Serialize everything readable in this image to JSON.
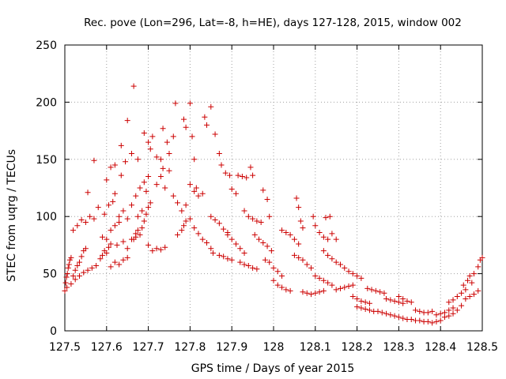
{
  "chart_data": {
    "type": "scatter",
    "title": "Rec. pove (Lon=296, Lat=-8, h=HE), days 127-128, 2015, window 002",
    "xlabel": "GPS time / Days of year 2015",
    "ylabel": "STEC from uqrg / TECUs",
    "xlim": [
      127.5,
      128.5
    ],
    "ylim": [
      0,
      250
    ],
    "xticks": [
      "127.5",
      "127.6",
      "127.7",
      "127.8",
      "127.9",
      "128",
      "128.1",
      "128.2",
      "128.3",
      "128.4",
      "128.5"
    ],
    "yticks": [
      "0",
      "50",
      "100",
      "150",
      "200",
      "250"
    ],
    "grid": true,
    "marker": "+",
    "marker_color": "#cc0000",
    "points": [
      [
        127.5,
        35
      ],
      [
        127.502,
        42
      ],
      [
        127.504,
        47
      ],
      [
        127.506,
        50
      ],
      [
        127.508,
        55
      ],
      [
        127.51,
        58
      ],
      [
        127.512,
        62
      ],
      [
        127.515,
        64
      ],
      [
        127.52,
        48
      ],
      [
        127.525,
        53
      ],
      [
        127.53,
        57
      ],
      [
        127.535,
        60
      ],
      [
        127.54,
        65
      ],
      [
        127.545,
        70
      ],
      [
        127.55,
        72
      ],
      [
        127.505,
        38
      ],
      [
        127.515,
        41
      ],
      [
        127.525,
        45
      ],
      [
        127.535,
        48
      ],
      [
        127.545,
        51
      ],
      [
        127.555,
        53
      ],
      [
        127.565,
        55
      ],
      [
        127.575,
        57
      ],
      [
        127.52,
        88
      ],
      [
        127.53,
        92
      ],
      [
        127.54,
        97
      ],
      [
        127.55,
        95
      ],
      [
        127.56,
        100
      ],
      [
        127.57,
        98
      ],
      [
        127.555,
        121
      ],
      [
        127.57,
        149
      ],
      [
        127.58,
        108
      ],
      [
        127.585,
        63
      ],
      [
        127.59,
        66
      ],
      [
        127.595,
        70
      ],
      [
        127.6,
        68
      ],
      [
        127.605,
        73
      ],
      [
        127.61,
        76
      ],
      [
        127.59,
        82
      ],
      [
        127.6,
        80
      ],
      [
        127.61,
        88
      ],
      [
        127.62,
        92
      ],
      [
        127.63,
        95
      ],
      [
        127.595,
        102
      ],
      [
        127.605,
        110
      ],
      [
        127.615,
        113
      ],
      [
        127.62,
        120
      ],
      [
        127.6,
        132
      ],
      [
        127.61,
        143
      ],
      [
        127.62,
        145
      ],
      [
        127.635,
        136
      ],
      [
        127.61,
        56
      ],
      [
        127.62,
        60
      ],
      [
        127.63,
        58
      ],
      [
        127.64,
        62
      ],
      [
        127.65,
        64
      ],
      [
        127.625,
        75
      ],
      [
        127.64,
        78
      ],
      [
        127.65,
        72
      ],
      [
        127.66,
        80
      ],
      [
        127.67,
        82
      ],
      [
        127.63,
        100
      ],
      [
        127.64,
        105
      ],
      [
        127.65,
        98
      ],
      [
        127.66,
        110
      ],
      [
        127.635,
        162
      ],
      [
        127.645,
        148
      ],
      [
        127.65,
        184
      ],
      [
        127.66,
        155
      ],
      [
        127.665,
        214
      ],
      [
        127.675,
        150
      ],
      [
        127.665,
        80
      ],
      [
        127.67,
        85
      ],
      [
        127.675,
        88
      ],
      [
        127.68,
        84
      ],
      [
        127.685,
        90
      ],
      [
        127.69,
        96
      ],
      [
        127.67,
        118
      ],
      [
        127.68,
        125
      ],
      [
        127.69,
        130
      ],
      [
        127.695,
        122
      ],
      [
        127.7,
        135
      ],
      [
        127.675,
        100
      ],
      [
        127.685,
        105
      ],
      [
        127.695,
        102
      ],
      [
        127.7,
        108
      ],
      [
        127.705,
        112
      ],
      [
        127.69,
        173
      ],
      [
        127.7,
        165
      ],
      [
        127.705,
        159
      ],
      [
        127.71,
        170
      ],
      [
        127.72,
        152
      ],
      [
        127.73,
        150
      ],
      [
        127.7,
        75
      ],
      [
        127.71,
        70
      ],
      [
        127.72,
        72
      ],
      [
        127.73,
        71
      ],
      [
        127.74,
        73
      ],
      [
        127.72,
        128
      ],
      [
        127.73,
        135
      ],
      [
        127.735,
        142
      ],
      [
        127.74,
        125
      ],
      [
        127.75,
        140
      ],
      [
        127.735,
        177
      ],
      [
        127.745,
        165
      ],
      [
        127.75,
        155
      ],
      [
        127.76,
        170
      ],
      [
        127.765,
        199
      ],
      [
        127.76,
        118
      ],
      [
        127.77,
        112
      ],
      [
        127.78,
        105
      ],
      [
        127.79,
        110
      ],
      [
        127.77,
        84
      ],
      [
        127.78,
        88
      ],
      [
        127.785,
        92
      ],
      [
        127.79,
        96
      ],
      [
        127.8,
        98
      ],
      [
        127.785,
        185
      ],
      [
        127.79,
        178
      ],
      [
        127.8,
        199
      ],
      [
        127.805,
        170
      ],
      [
        127.81,
        150
      ],
      [
        127.8,
        128
      ],
      [
        127.81,
        122
      ],
      [
        127.815,
        125
      ],
      [
        127.82,
        118
      ],
      [
        127.83,
        120
      ],
      [
        127.81,
        90
      ],
      [
        127.82,
        85
      ],
      [
        127.83,
        80
      ],
      [
        127.84,
        77
      ],
      [
        127.85,
        72
      ],
      [
        127.835,
        187
      ],
      [
        127.84,
        180
      ],
      [
        127.85,
        196
      ],
      [
        127.86,
        172
      ],
      [
        127.87,
        155
      ],
      [
        127.85,
        100
      ],
      [
        127.86,
        97
      ],
      [
        127.87,
        94
      ],
      [
        127.88,
        89
      ],
      [
        127.89,
        86
      ],
      [
        127.855,
        68
      ],
      [
        127.87,
        66
      ],
      [
        127.88,
        65
      ],
      [
        127.89,
        63
      ],
      [
        127.9,
        62
      ],
      [
        127.875,
        145
      ],
      [
        127.885,
        138
      ],
      [
        127.895,
        136
      ],
      [
        127.9,
        124
      ],
      [
        127.91,
        120
      ],
      [
        127.89,
        84
      ],
      [
        127.9,
        80
      ],
      [
        127.91,
        76
      ],
      [
        127.92,
        72
      ],
      [
        127.93,
        68
      ],
      [
        127.915,
        136
      ],
      [
        127.925,
        135
      ],
      [
        127.935,
        134
      ],
      [
        127.945,
        143
      ],
      [
        127.95,
        136
      ],
      [
        127.92,
        60
      ],
      [
        127.93,
        58
      ],
      [
        127.94,
        57
      ],
      [
        127.95,
        55
      ],
      [
        127.96,
        54
      ],
      [
        127.93,
        105
      ],
      [
        127.94,
        100
      ],
      [
        127.95,
        98
      ],
      [
        127.96,
        96
      ],
      [
        127.97,
        95
      ],
      [
        127.955,
        84
      ],
      [
        127.965,
        80
      ],
      [
        127.975,
        77
      ],
      [
        127.985,
        74
      ],
      [
        127.995,
        70
      ],
      [
        127.975,
        123
      ],
      [
        127.985,
        115
      ],
      [
        127.99,
        100
      ],
      [
        127.98,
        62
      ],
      [
        127.99,
        60
      ],
      [
        128.0,
        55
      ],
      [
        128.01,
        52
      ],
      [
        128.02,
        48
      ],
      [
        128.0,
        44
      ],
      [
        128.01,
        40
      ],
      [
        128.02,
        38
      ],
      [
        128.03,
        36
      ],
      [
        128.04,
        35
      ],
      [
        128.02,
        88
      ],
      [
        128.03,
        86
      ],
      [
        128.04,
        84
      ],
      [
        128.05,
        80
      ],
      [
        128.06,
        76
      ],
      [
        128.055,
        116
      ],
      [
        128.06,
        108
      ],
      [
        128.065,
        96
      ],
      [
        128.07,
        90
      ],
      [
        128.05,
        66
      ],
      [
        128.06,
        64
      ],
      [
        128.07,
        62
      ],
      [
        128.08,
        58
      ],
      [
        128.09,
        55
      ],
      [
        128.07,
        34
      ],
      [
        128.08,
        33
      ],
      [
        128.09,
        32
      ],
      [
        128.1,
        33
      ],
      [
        128.11,
        34
      ],
      [
        128.12,
        35
      ],
      [
        128.095,
        100
      ],
      [
        128.1,
        92
      ],
      [
        128.11,
        86
      ],
      [
        128.12,
        82
      ],
      [
        128.13,
        80
      ],
      [
        128.125,
        99
      ],
      [
        128.135,
        100
      ],
      [
        128.14,
        85
      ],
      [
        128.15,
        80
      ],
      [
        128.1,
        48
      ],
      [
        128.11,
        46
      ],
      [
        128.12,
        44
      ],
      [
        128.13,
        42
      ],
      [
        128.14,
        40
      ],
      [
        128.12,
        70
      ],
      [
        128.13,
        66
      ],
      [
        128.14,
        63
      ],
      [
        128.15,
        60
      ],
      [
        128.16,
        58
      ],
      [
        128.15,
        36
      ],
      [
        128.16,
        37
      ],
      [
        128.17,
        38
      ],
      [
        128.18,
        39
      ],
      [
        128.19,
        40
      ],
      [
        128.17,
        55
      ],
      [
        128.18,
        52
      ],
      [
        128.19,
        50
      ],
      [
        128.2,
        48
      ],
      [
        128.21,
        46
      ],
      [
        128.19,
        30
      ],
      [
        128.2,
        28
      ],
      [
        128.21,
        26
      ],
      [
        128.22,
        25
      ],
      [
        128.23,
        24
      ],
      [
        128.2,
        21
      ],
      [
        128.21,
        20
      ],
      [
        128.22,
        19
      ],
      [
        128.23,
        18
      ],
      [
        128.24,
        17
      ],
      [
        128.25,
        17
      ],
      [
        128.225,
        37
      ],
      [
        128.235,
        36
      ],
      [
        128.245,
        35
      ],
      [
        128.255,
        34
      ],
      [
        128.265,
        33
      ],
      [
        128.26,
        16
      ],
      [
        128.27,
        15
      ],
      [
        128.28,
        14
      ],
      [
        128.29,
        13
      ],
      [
        128.3,
        12
      ],
      [
        128.27,
        28
      ],
      [
        128.28,
        27
      ],
      [
        128.29,
        26
      ],
      [
        128.3,
        25
      ],
      [
        128.31,
        24
      ],
      [
        128.3,
        30
      ],
      [
        128.31,
        28
      ],
      [
        128.32,
        26
      ],
      [
        128.33,
        25
      ],
      [
        128.31,
        11
      ],
      [
        128.32,
        10
      ],
      [
        128.33,
        10
      ],
      [
        128.34,
        9
      ],
      [
        128.35,
        9
      ],
      [
        128.34,
        18
      ],
      [
        128.35,
        17
      ],
      [
        128.36,
        16
      ],
      [
        128.37,
        16
      ],
      [
        128.38,
        17
      ],
      [
        128.36,
        8
      ],
      [
        128.37,
        8
      ],
      [
        128.38,
        7
      ],
      [
        128.39,
        8
      ],
      [
        128.4,
        9
      ],
      [
        128.39,
        14
      ],
      [
        128.4,
        15
      ],
      [
        128.41,
        16
      ],
      [
        128.42,
        18
      ],
      [
        128.43,
        20
      ],
      [
        128.41,
        12
      ],
      [
        128.42,
        13
      ],
      [
        128.43,
        15
      ],
      [
        128.44,
        18
      ],
      [
        128.45,
        22
      ],
      [
        128.42,
        25
      ],
      [
        128.43,
        27
      ],
      [
        128.44,
        30
      ],
      [
        128.45,
        33
      ],
      [
        128.46,
        36
      ],
      [
        128.455,
        40
      ],
      [
        128.465,
        44
      ],
      [
        128.47,
        48
      ],
      [
        128.475,
        42
      ],
      [
        128.46,
        28
      ],
      [
        128.47,
        30
      ],
      [
        128.48,
        32
      ],
      [
        128.49,
        35
      ],
      [
        128.48,
        50
      ],
      [
        128.49,
        56
      ],
      [
        128.495,
        62
      ],
      [
        128.5,
        64
      ]
    ]
  }
}
